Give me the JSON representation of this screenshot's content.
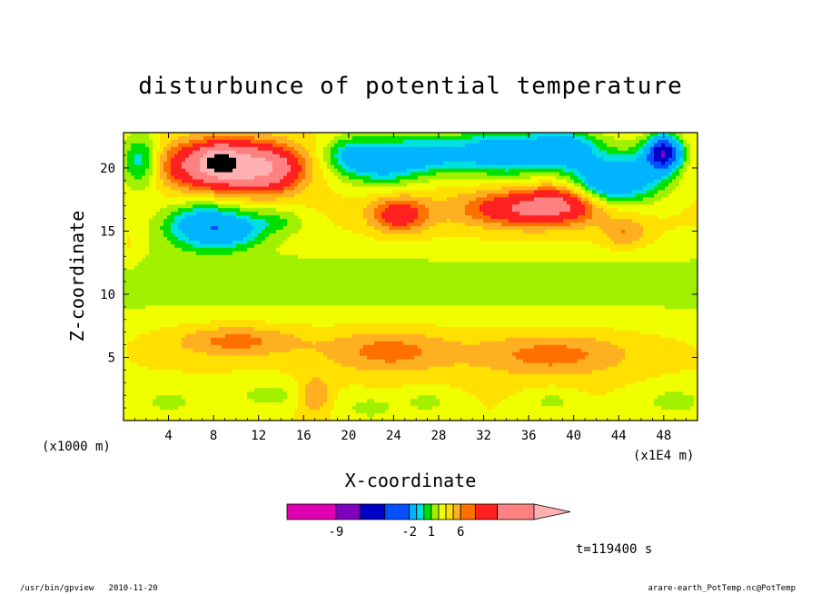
{
  "footer": {
    "left": "/usr/bin/gpview   2010-11-20",
    "right": "arare-earth_PotTemp.nc@PotTemp"
  },
  "chart_data": {
    "type": "heatmap",
    "title": "disturbunce of potential temperature",
    "xlabel": "X-coordinate",
    "ylabel": "Z-coordinate",
    "x_unit_label": "(x1E4 m)",
    "y_unit_label": "(x1000 m)",
    "x_ticks": [
      "4",
      "8",
      "12",
      "16",
      "20",
      "24",
      "28",
      "32",
      "36",
      "40",
      "44",
      "48"
    ],
    "y_ticks": [
      "5",
      "10",
      "15",
      "20"
    ],
    "xlim": [
      0,
      51
    ],
    "ylim": [
      0,
      22.8
    ],
    "time_label": "t=119400 s",
    "colorbar": {
      "tick_labels": [
        "-9",
        "-2",
        "1",
        "6"
      ],
      "tick_levels": [
        -9,
        -2,
        1,
        6
      ],
      "levels": [
        -15,
        -12,
        -9,
        -6,
        -3,
        -2,
        -1,
        0,
        1,
        2,
        3,
        4,
        6,
        9,
        12
      ],
      "colors": [
        "#e000b0",
        "#8000c0",
        "#0000c8",
        "#0050ff",
        "#00b4ff",
        "#00e0e0",
        "#00e000",
        "#a0f000",
        "#f0ff00",
        "#ffe000",
        "#ffb020",
        "#ff7000",
        "#ff2020",
        "#ff8080",
        "#ffb0b0"
      ]
    },
    "background_level": 1,
    "anomalies": [
      {
        "x": 9,
        "z": 20.2,
        "sx": 3.5,
        "sz": 1.3,
        "a": 9
      },
      {
        "x": 8.5,
        "z": 20.5,
        "sx": 1.0,
        "sz": 0.7,
        "a": 5
      },
      {
        "x": 13,
        "z": 19.8,
        "sx": 2.0,
        "sz": 1.2,
        "a": 4
      },
      {
        "x": 1.5,
        "z": 20.5,
        "sx": 1.2,
        "sz": 1.5,
        "a": -4
      },
      {
        "x": 7,
        "z": 15.5,
        "sx": 2.5,
        "sz": 1.2,
        "a": -5
      },
      {
        "x": 9.5,
        "z": 15,
        "sx": 2.2,
        "sz": 1.0,
        "a": -3
      },
      {
        "x": 13.5,
        "z": 15.8,
        "sx": 2.0,
        "sz": 0.8,
        "a": -2
      },
      {
        "x": 23,
        "z": 20.5,
        "sx": 2.3,
        "sz": 1.3,
        "a": -5
      },
      {
        "x": 20,
        "z": 21,
        "sx": 1.5,
        "sz": 1.0,
        "a": -3
      },
      {
        "x": 27,
        "z": 21,
        "sx": 2.0,
        "sz": 1.0,
        "a": -3
      },
      {
        "x": 34,
        "z": 21.2,
        "sx": 4.0,
        "sz": 1.2,
        "a": -6
      },
      {
        "x": 39.5,
        "z": 21.5,
        "sx": 2.0,
        "sz": 1.0,
        "a": -4
      },
      {
        "x": 42.5,
        "z": 18.7,
        "sx": 2.0,
        "sz": 1.3,
        "a": -6
      },
      {
        "x": 48,
        "z": 21.2,
        "sx": 1.0,
        "sz": 0.9,
        "a": -12
      },
      {
        "x": 46,
        "z": 19.5,
        "sx": 2.0,
        "sz": 1.5,
        "a": -4
      },
      {
        "x": 36,
        "z": 16.8,
        "sx": 4.0,
        "sz": 1.0,
        "a": 5
      },
      {
        "x": 40,
        "z": 17.5,
        "sx": 2.5,
        "sz": 1.0,
        "a": 3
      },
      {
        "x": 24.5,
        "z": 16.3,
        "sx": 1.8,
        "sz": 1.0,
        "a": 4
      },
      {
        "x": 44.5,
        "z": 14.8,
        "sx": 1.4,
        "sz": 0.9,
        "a": 2
      },
      {
        "x": 15,
        "z": 7.5,
        "sx": 12.0,
        "sz": 0.9,
        "a": 0.1
      },
      {
        "x": 40,
        "z": 7.0,
        "sx": 13.0,
        "sz": 1.0,
        "a": 0.1
      },
      {
        "x": 10,
        "z": 6.3,
        "sx": 4.0,
        "sz": 0.9,
        "a": 2.5
      },
      {
        "x": 23.5,
        "z": 5.5,
        "sx": 4.0,
        "sz": 1.2,
        "a": 2.5
      },
      {
        "x": 38,
        "z": 5.2,
        "sx": 5.0,
        "sz": 1.2,
        "a": 2.5
      },
      {
        "x": 17,
        "z": 2.0,
        "sx": 1.0,
        "sz": 1.0,
        "a": 2.5
      },
      {
        "x": 4,
        "z": 1.5,
        "sx": 2.0,
        "sz": 0.8,
        "a": -1.3
      },
      {
        "x": 13,
        "z": 2.0,
        "sx": 3.0,
        "sz": 0.8,
        "a": -1.3
      },
      {
        "x": 22,
        "z": 1.0,
        "sx": 2.0,
        "sz": 0.8,
        "a": -1.3
      },
      {
        "x": 27,
        "z": 1.5,
        "sx": 1.5,
        "sz": 0.7,
        "a": -1.3
      },
      {
        "x": 38,
        "z": 1.5,
        "sx": 1.5,
        "sz": 0.7,
        "a": -1.3
      },
      {
        "x": 49,
        "z": 1.5,
        "sx": 2.5,
        "sz": 1.0,
        "a": -1.3
      },
      {
        "x": 39,
        "z": 14.8,
        "sx": 12.0,
        "sz": 2.0,
        "a": 0.4
      },
      {
        "x": 18,
        "z": 16.5,
        "sx": 10.0,
        "sz": 1.5,
        "a": 0.2
      },
      {
        "x": 0.5,
        "z": 13.5,
        "sx": 0.7,
        "sz": 1.2,
        "a": 0.8
      }
    ],
    "band_layers": [
      {
        "z": 11.0,
        "sz": 2.3,
        "a": -1.5
      }
    ]
  }
}
